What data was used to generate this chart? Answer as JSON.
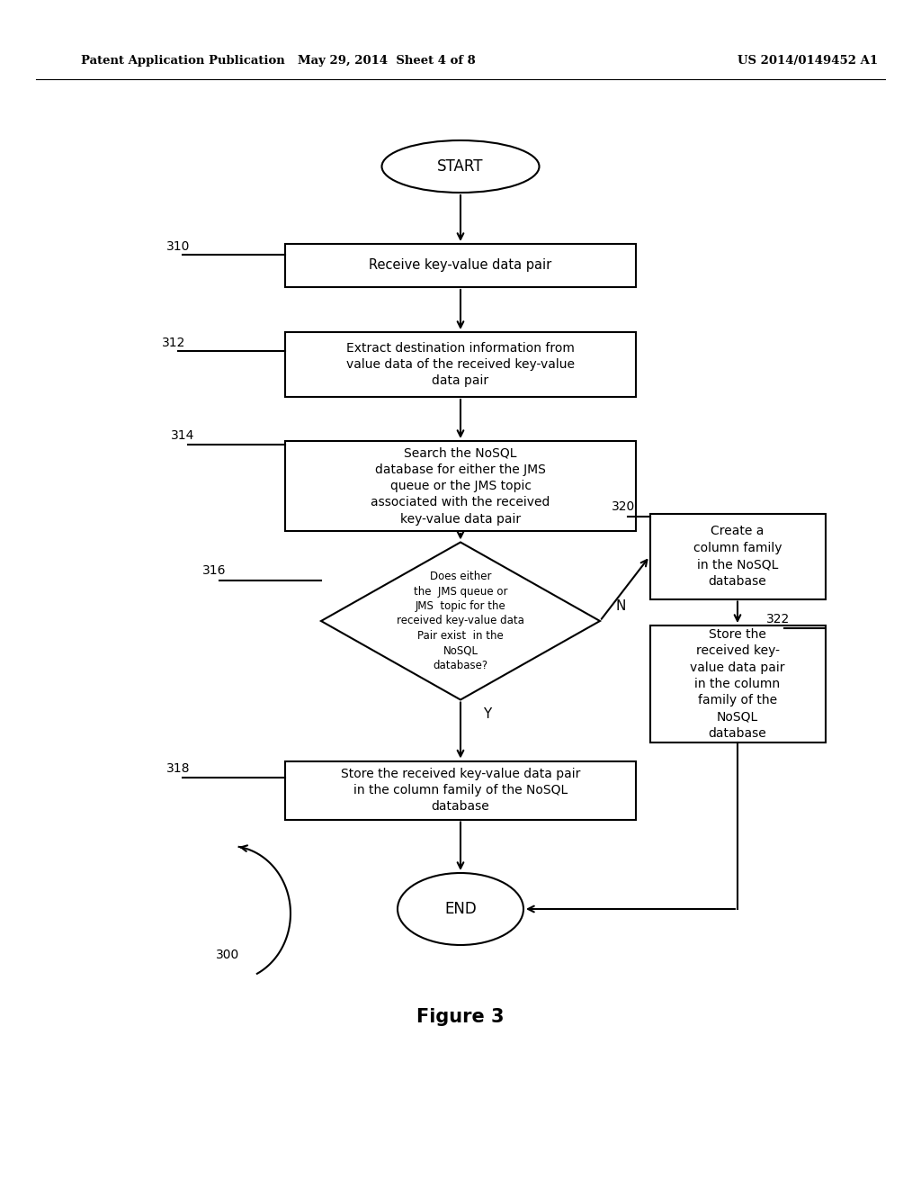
{
  "header_left": "Patent Application Publication",
  "header_mid": "May 29, 2014  Sheet 4 of 8",
  "header_right": "US 2014/0149452 A1",
  "figure_label": "Figure 3",
  "background_color": "#ffffff",
  "line_color": "#000000"
}
